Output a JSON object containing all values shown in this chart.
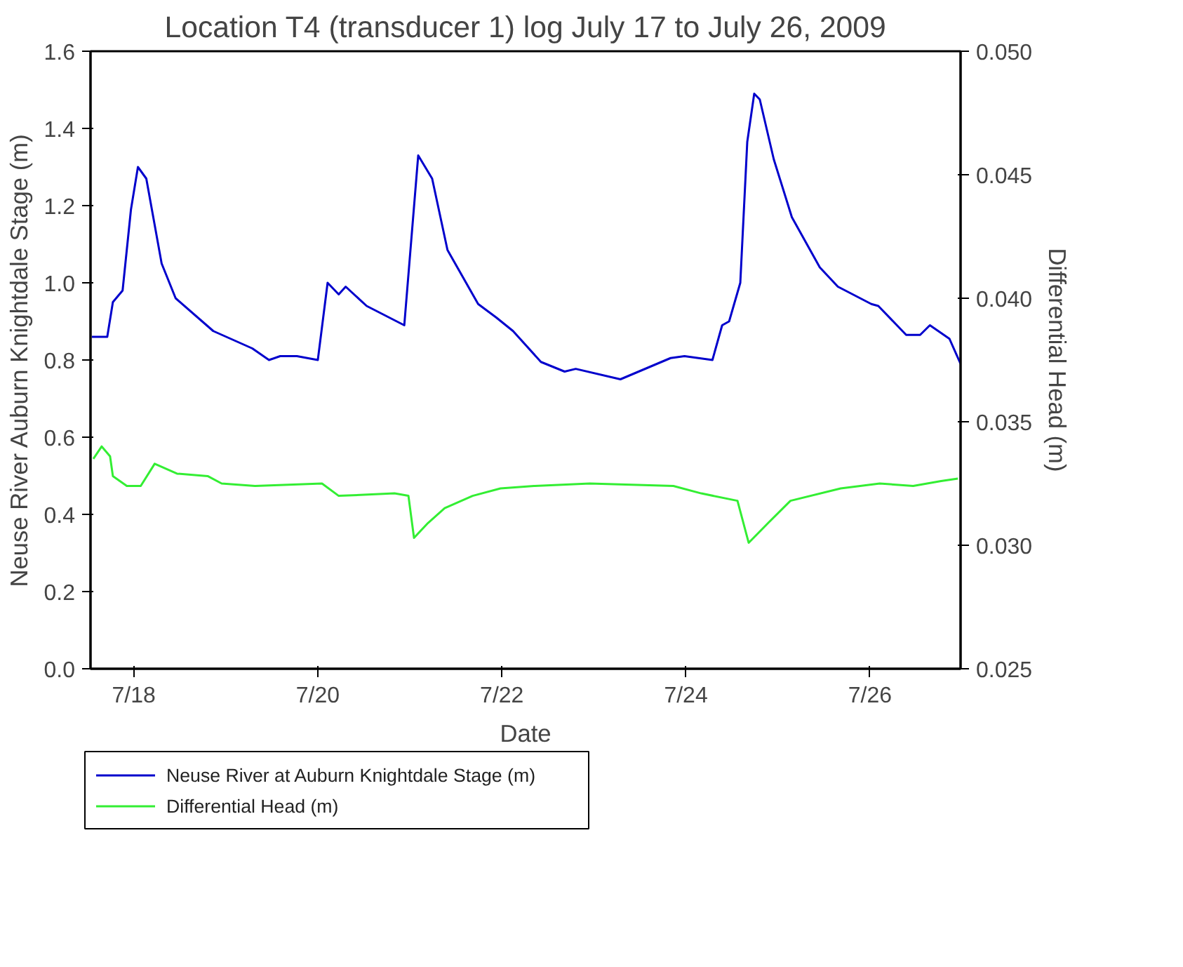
{
  "chart_data": {
    "type": "line",
    "title": "Location T4 (transducer 1) log July 17 to July 26, 2009",
    "xlabel": "Date",
    "ylabel": "Neuse River Auburn Knightdale Stage (m)",
    "y2label": "Differential Head (m)",
    "xlim": [
      "2009-07-17T12:43",
      "2009-07-26T23:38"
    ],
    "xticks": [
      {
        "value": "2009-07-18",
        "label": "7/18"
      },
      {
        "value": "2009-07-20",
        "label": "7/20"
      },
      {
        "value": "2009-07-22",
        "label": "7/22"
      },
      {
        "value": "2009-07-24",
        "label": "7/24"
      },
      {
        "value": "2009-07-26",
        "label": "7/26"
      }
    ],
    "ylim": [
      0,
      1.6
    ],
    "yticks": [
      {
        "value": 0,
        "label": "0.0"
      },
      0.2,
      0.4,
      0.6,
      0.8,
      {
        "value": 1,
        "label": "1.0"
      },
      1.2,
      1.4,
      1.6
    ],
    "y2lim": [
      0.025,
      0.05
    ],
    "y2ticks": [
      0.025,
      {
        "value": 0.03,
        "label": "0.030"
      },
      0.035,
      {
        "value": 0.04,
        "label": "0.040"
      },
      0.045,
      {
        "value": 0.05,
        "label": "0.050"
      }
    ],
    "grid": false,
    "legend": "bottom left",
    "marker": "none",
    "line_style": "solid",
    "series": [
      {
        "name": "Neuse River at Auburn Knightdale Stage (m)",
        "color": "#0000cc",
        "x": [
          "2009-07-17T13:05",
          "2009-07-17T17:05",
          "2009-07-17T18:33",
          "2009-07-17T21:05",
          "2009-07-17T23:16",
          "2009-07-18T01:05",
          "2009-07-18T03:16",
          "2009-07-18T07:16",
          "2009-07-18T10:55",
          "2009-07-18T20:44",
          "2009-07-19T06:55",
          "2009-07-19T11:16",
          "2009-07-19T14:11",
          "2009-07-19T18:33",
          "2009-07-20T00:00",
          "2009-07-20T02:33",
          "2009-07-20T05:27",
          "2009-07-20T07:16",
          "2009-07-20T12:44",
          "2009-07-20T22:33",
          "2009-07-21T02:11",
          "2009-07-21T05:49",
          "2009-07-21T09:49",
          "2009-07-21T17:49",
          "2009-07-21T22:33",
          "2009-07-22T02:55",
          "2009-07-22T10:11",
          "2009-07-22T16:22",
          "2009-07-22T19:16",
          "2009-07-23T06:55",
          "2009-07-23T20:00",
          "2009-07-23T23:38",
          "2009-07-24T06:55",
          "2009-07-24T09:27",
          "2009-07-24T11:16",
          "2009-07-24T14:11",
          "2009-07-24T16:00",
          "2009-07-24T17:49",
          "2009-07-24T19:16",
          "2009-07-24T22:55",
          "2009-07-25T03:38",
          "2009-07-25T10:55",
          "2009-07-25T15:38",
          "2009-07-26T00:22",
          "2009-07-26T02:11",
          "2009-07-26T09:27",
          "2009-07-26T13:05",
          "2009-07-26T15:38",
          "2009-07-26T20:44",
          "2009-07-26T23:38"
        ],
        "values": [
          0.86,
          0.86,
          0.95,
          0.98,
          1.19,
          1.3,
          1.27,
          1.05,
          0.96,
          0.875,
          0.83,
          0.8,
          0.81,
          0.81,
          0.8,
          1.0,
          0.97,
          0.99,
          0.94,
          0.89,
          1.33,
          1.27,
          1.085,
          0.945,
          0.91,
          0.875,
          0.795,
          0.77,
          0.777,
          0.75,
          0.805,
          0.81,
          0.8,
          0.89,
          0.9,
          1.0,
          1.365,
          1.49,
          1.475,
          1.32,
          1.17,
          1.04,
          0.99,
          0.945,
          0.94,
          0.865,
          0.865,
          0.89,
          0.855,
          0.79
        ]
      },
      {
        "name": "Differential Head (m)",
        "color": "#33ee33",
        "axis": "y2",
        "x": [
          "2009-07-17T13:27",
          "2009-07-17T15:38",
          "2009-07-17T17:49",
          "2009-07-17T18:33",
          "2009-07-17T22:11",
          "2009-07-18T01:49",
          "2009-07-18T05:27",
          "2009-07-18T11:16",
          "2009-07-18T19:16",
          "2009-07-18T22:55",
          "2009-07-19T07:38",
          "2009-07-20T01:05",
          "2009-07-20T05:27",
          "2009-07-20T20:00",
          "2009-07-20T23:38",
          "2009-07-21T01:05",
          "2009-07-21T04:44",
          "2009-07-21T09:05",
          "2009-07-21T16:22",
          "2009-07-21T23:38",
          "2009-07-22T08:22",
          "2009-07-22T22:55",
          "2009-07-23T20:44",
          "2009-07-24T04:00",
          "2009-07-24T13:27",
          "2009-07-24T16:22",
          "2009-07-24T21:27",
          "2009-07-25T03:16",
          "2009-07-25T16:22",
          "2009-07-26T02:33",
          "2009-07-26T11:16",
          "2009-07-26T18:33",
          "2009-07-26T22:55"
        ],
        "values": [
          0.0335,
          0.034,
          0.0336,
          0.0328,
          0.0324,
          0.0324,
          0.0333,
          0.0329,
          0.0328,
          0.0325,
          0.0324,
          0.0325,
          0.032,
          0.0321,
          0.032,
          0.0303,
          0.0309,
          0.0315,
          0.032,
          0.0323,
          0.0324,
          0.0325,
          0.0324,
          0.0321,
          0.0318,
          0.0301,
          0.0309,
          0.0318,
          0.0323,
          0.0325,
          0.0324,
          0.0326,
          0.0327
        ]
      }
    ]
  }
}
